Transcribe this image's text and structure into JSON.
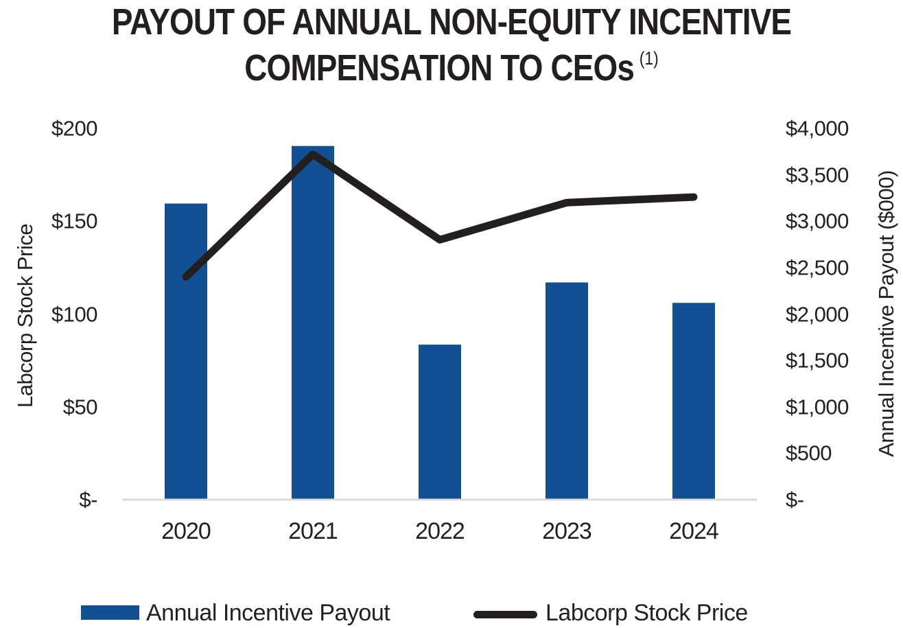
{
  "title": {
    "line1": "PAYOUT OF ANNUAL NON-EQUITY INCENTIVE",
    "line2": "COMPENSATION TO CEOs",
    "footnote_marker": "(1)"
  },
  "chart_data": {
    "type": "combo_bar_line",
    "categories": [
      "2020",
      "2021",
      "2022",
      "2023",
      "2024"
    ],
    "series": [
      {
        "name": "Annual Incentive Payout",
        "type": "bar",
        "axis": "right",
        "color": "#124F93",
        "values": [
          3190,
          3810,
          1670,
          2340,
          2120
        ]
      },
      {
        "name": "Labcorp Stock Price",
        "type": "line",
        "axis": "left",
        "color": "#231F20",
        "values": [
          120,
          186,
          140,
          160,
          163
        ]
      }
    ],
    "left_axis": {
      "label": "Labcorp Stock Price",
      "min": 0,
      "max": 200,
      "tick_labels_bottom_to_top": [
        "$-",
        "$50",
        "$100",
        "$150",
        "$200"
      ]
    },
    "right_axis": {
      "label": "Annual Incentive Payout ($000)",
      "min": 0,
      "max": 4000,
      "tick_labels_bottom_to_top": [
        "$-",
        "$500",
        "$1,000",
        "$1,500",
        "$2,000",
        "$2,500",
        "$3,000",
        "$3,500",
        "$4,000"
      ]
    },
    "grid": false,
    "legend_position": "bottom",
    "baseline_color": "#D9D9D9",
    "text_color": "#231F20",
    "background_color": "#FFFFFF"
  }
}
